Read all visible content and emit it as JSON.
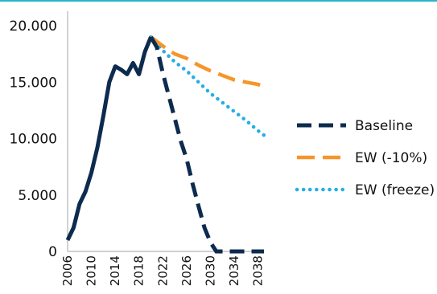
{
  "chart_data": {
    "type": "line",
    "title": "",
    "xlabel": "",
    "ylabel": "",
    "xlim": [
      2006,
      2039
    ],
    "ylim": [
      0,
      20000
    ],
    "x_ticks": [
      2006,
      2010,
      2014,
      2018,
      2022,
      2026,
      2030,
      2034,
      2038
    ],
    "x_tick_labels": [
      "2006",
      "2010",
      "2014",
      "2018",
      "2022",
      "2026",
      "2030",
      "2034",
      "2038"
    ],
    "y_ticks": [
      0,
      5000,
      10000,
      15000,
      20000
    ],
    "y_tick_labels": [
      "0",
      "5.000",
      "10.000",
      "15.000",
      "20.000"
    ],
    "grid": false,
    "legend_position": "right",
    "series": [
      {
        "name": "Baseline",
        "color": "#0d2b4e",
        "dash": "dashed",
        "x": [
          2006,
          2007,
          2008,
          2009,
          2010,
          2011,
          2012,
          2013,
          2014,
          2015,
          2016,
          2017,
          2018,
          2019,
          2020,
          2021,
          2022,
          2023,
          2024,
          2025,
          2026,
          2027,
          2028,
          2029,
          2030,
          2031,
          2032,
          2033,
          2034,
          2035,
          2036,
          2037,
          2038,
          2039
        ],
        "y": [
          1000,
          2100,
          4200,
          5300,
          7000,
          9200,
          12000,
          15000,
          16400,
          16100,
          15700,
          16700,
          15700,
          17700,
          19000,
          18100,
          15800,
          13800,
          11800,
          9800,
          8200,
          6000,
          4000,
          2100,
          800,
          0,
          0,
          0,
          0,
          0,
          0,
          0,
          0,
          0
        ]
      },
      {
        "name": "EW (-10%)",
        "color": "#f5962a",
        "dash": "long-dashed",
        "x": [
          2020,
          2022,
          2024,
          2026,
          2028,
          2030,
          2032,
          2034,
          2036,
          2038,
          2039
        ],
        "y": [
          19000,
          18200,
          17500,
          17100,
          16500,
          16000,
          15600,
          15200,
          15000,
          14800,
          14600
        ]
      },
      {
        "name": "EW (freeze)",
        "color": "#25aee2",
        "dash": "dotted",
        "x": [
          2020,
          2022,
          2024,
          2026,
          2028,
          2030,
          2032,
          2034,
          2036,
          2038,
          2039
        ],
        "y": [
          19000,
          17800,
          16800,
          16000,
          15000,
          14000,
          13200,
          12400,
          11600,
          10700,
          10300
        ]
      }
    ]
  }
}
